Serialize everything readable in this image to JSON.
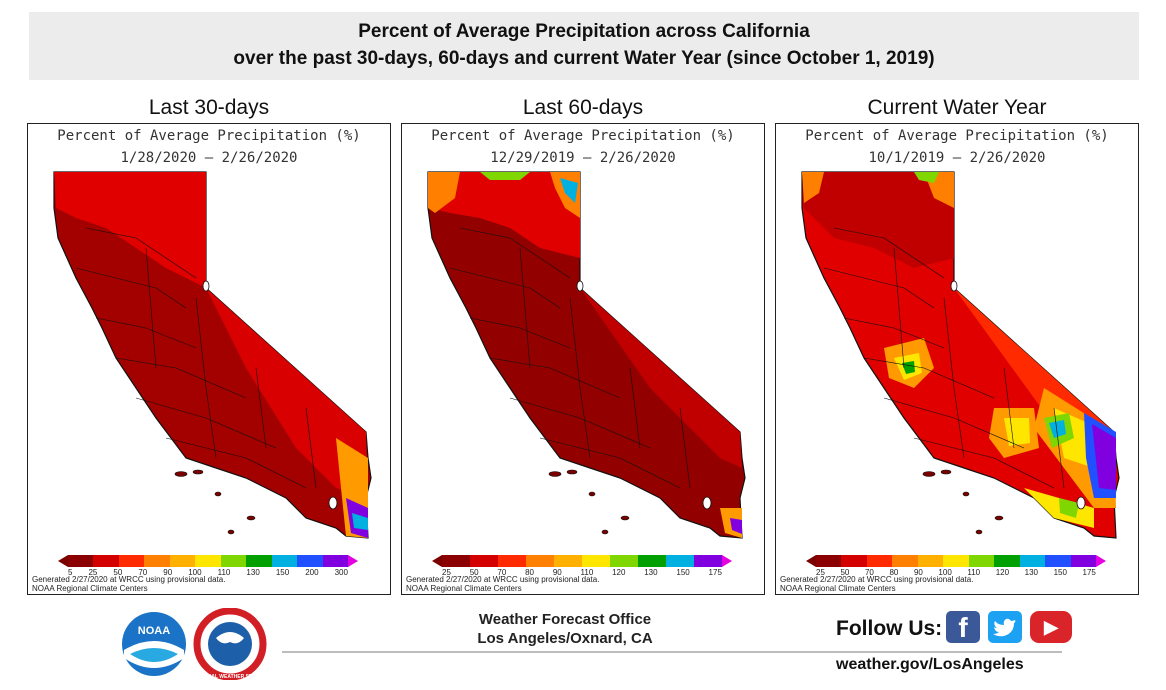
{
  "header": {
    "line1": "Percent of Average Precipitation across California",
    "line2": "over the past 30-days, 60-days and current Water Year (since October 1, 2019)"
  },
  "panels": [
    {
      "heading": "Last 30-days",
      "map_title": "Percent of Average Precipitation (%)",
      "date_range": "1/28/2020 – 2/26/2020",
      "legend_ticks": [
        "5",
        "25",
        "50",
        "70",
        "90",
        "100",
        "110",
        "130",
        "150",
        "200",
        "300"
      ],
      "generated": "Generated 2/27/2020 at WRCC using provisional data.",
      "source": "NOAA Regional Climate Centers"
    },
    {
      "heading": "Last 60-days",
      "map_title": "Percent of Average Precipitation (%)",
      "date_range": "12/29/2019 – 2/26/2020",
      "legend_ticks": [
        "25",
        "50",
        "70",
        "80",
        "90",
        "110",
        "120",
        "130",
        "150",
        "175"
      ],
      "generated": "Generated 2/27/2020 at WRCC using provisional data.",
      "source": "NOAA Regional Climate Centers"
    },
    {
      "heading": "Current Water Year",
      "map_title": "Percent of Average Precipitation (%)",
      "date_range": "10/1/2019 – 2/26/2020",
      "legend_ticks": [
        "25",
        "50",
        "70",
        "80",
        "90",
        "100",
        "110",
        "120",
        "130",
        "150",
        "175"
      ],
      "generated": "Generated 2/27/2020 at WRCC using provisional data.",
      "source": "NOAA Regional Climate Centers"
    }
  ],
  "legend_colors": [
    "#8b0000",
    "#d40000",
    "#ff2a00",
    "#ff7f00",
    "#ffb000",
    "#ffe600",
    "#7fd600",
    "#00a000",
    "#00b0e0",
    "#2050ff",
    "#8000e0",
    "#e400e0"
  ],
  "footer": {
    "office_line1": "Weather Forecast Office",
    "office_line2": "Los Angeles/Oxnard, CA",
    "follow_us": "Follow Us:",
    "website": "weather.gov/LosAngeles",
    "noaa_logo_text": "NOAA",
    "nws_seal_text": "NATIONAL WEATHER SERVICE",
    "facebook_glyph": "f",
    "youtube_glyph": "▶"
  }
}
